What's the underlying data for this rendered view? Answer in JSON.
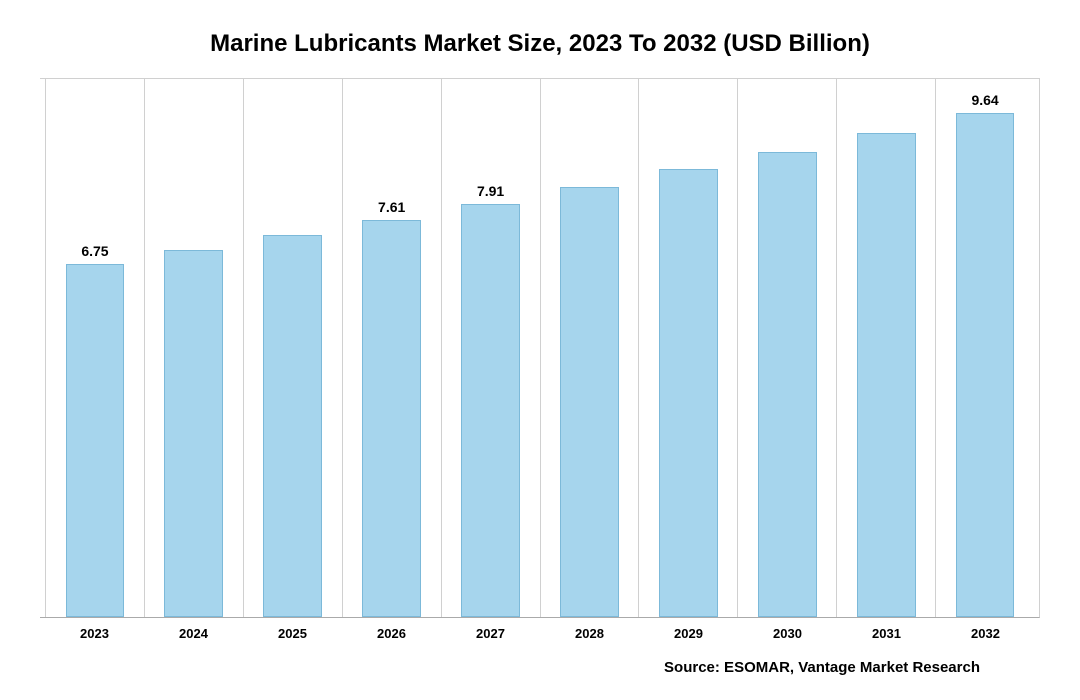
{
  "chart": {
    "type": "bar",
    "title": "Marine Lubricants Market Size, 2023 To 2032 (USD Billion)",
    "title_fontsize": 24,
    "title_fontweight": 700,
    "title_color": "#000000",
    "categories": [
      "2023",
      "2024",
      "2025",
      "2026",
      "2027",
      "2028",
      "2029",
      "2030",
      "2031",
      "2032"
    ],
    "values": [
      6.75,
      7.03,
      7.32,
      7.61,
      7.91,
      8.23,
      8.57,
      8.91,
      9.27,
      9.64
    ],
    "visible_labels": {
      "0": "6.75",
      "3": "7.61",
      "4": "7.91",
      "9": "9.64"
    },
    "ylim": [
      0,
      10.3
    ],
    "bar_color": "#a6d5ed",
    "bar_border_color": "#7cb9d9",
    "bar_width_ratio": 0.6,
    "grid_color": "#d0d0d0",
    "axis_baseline_color": "#aaaaaa",
    "background_color": "#ffffff",
    "bar_label_fontsize": 14,
    "bar_label_fontweight": 700,
    "x_label_fontsize": 13,
    "x_label_fontweight": 700
  },
  "source": {
    "text": "Source: ESOMAR, Vantage Market Research",
    "fontsize": 15,
    "fontweight": 700,
    "color": "#000000"
  }
}
